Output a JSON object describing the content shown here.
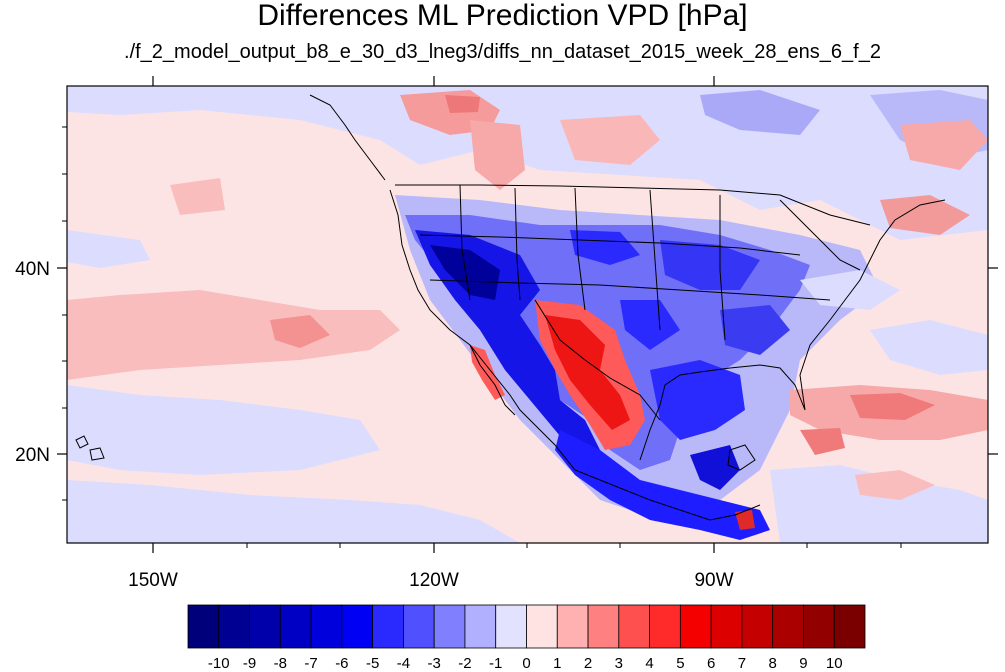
{
  "title": "Differences ML Prediction VPD [hPa]",
  "subtitle": "./f_2_model_output_b8_e_30_d3_lneg3/diffs_nn_dataset_2015_week_28_ens_6_f_2",
  "axes": {
    "x_ticks": [
      "150W",
      "120W",
      "90W"
    ],
    "y_ticks": [
      "40N",
      "20N"
    ]
  },
  "colorbar": {
    "labels": [
      "-10",
      "-9",
      "-8",
      "-7",
      "-6",
      "-5",
      "-4",
      "-3",
      "-2",
      "-1",
      "0",
      "1",
      "2",
      "3",
      "4",
      "5",
      "6",
      "7",
      "8",
      "9",
      "10"
    ],
    "colors": [
      "#00007a",
      "#000093",
      "#0000ab",
      "#0000c4",
      "#0000dd",
      "#0000f5",
      "#2a2aff",
      "#5050ff",
      "#8080ff",
      "#b0b0ff",
      "#e2e2ff",
      "#ffe2e2",
      "#ffb0b0",
      "#ff8080",
      "#ff5050",
      "#ff2a2a",
      "#f50000",
      "#dd0000",
      "#c40000",
      "#ab0000",
      "#930000",
      "#7a0000"
    ]
  },
  "map": {
    "background_color": "#fde4e4",
    "features": [
      "coastlines",
      "country-borders",
      "us-state-borders",
      "filled-contours"
    ]
  }
}
